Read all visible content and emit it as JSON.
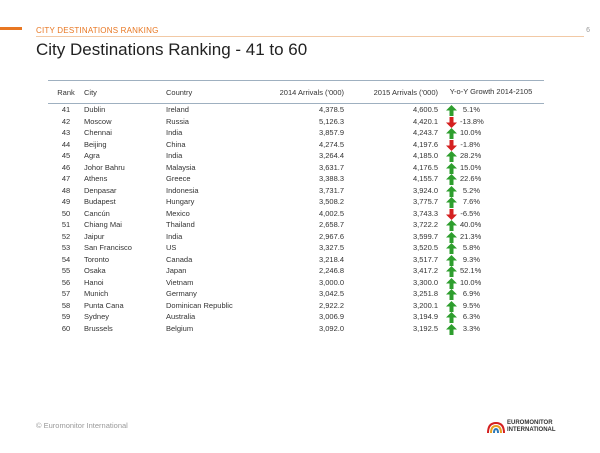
{
  "header": {
    "section_label": "CITY DESTINATIONS RANKING",
    "page_number": "6",
    "title": "City Destinations Ranking - 41 to 60"
  },
  "table": {
    "columns": [
      "Rank",
      "City",
      "Country",
      "2014 Arrivals ('000)",
      "2015 Arrivals ('000)",
      "Y-o-Y Growth 2014-2105"
    ],
    "rows": [
      {
        "rank": "41",
        "city": "Dublin",
        "country": "Ireland",
        "a2014": "4,378.5",
        "a2015": "4,600.5",
        "growth": "5.1%",
        "direction": "up"
      },
      {
        "rank": "42",
        "city": "Moscow",
        "country": "Russia",
        "a2014": "5,126.3",
        "a2015": "4,420.1",
        "growth": "-13.8%",
        "direction": "down"
      },
      {
        "rank": "43",
        "city": "Chennai",
        "country": "India",
        "a2014": "3,857.9",
        "a2015": "4,243.7",
        "growth": "10.0%",
        "direction": "up"
      },
      {
        "rank": "44",
        "city": "Beijing",
        "country": "China",
        "a2014": "4,274.5",
        "a2015": "4,197.6",
        "growth": "-1.8%",
        "direction": "down"
      },
      {
        "rank": "45",
        "city": "Agra",
        "country": "India",
        "a2014": "3,264.4",
        "a2015": "4,185.0",
        "growth": "28.2%",
        "direction": "up"
      },
      {
        "rank": "46",
        "city": "Johor Bahru",
        "country": "Malaysia",
        "a2014": "3,631.7",
        "a2015": "4,176.5",
        "growth": "15.0%",
        "direction": "up"
      },
      {
        "rank": "47",
        "city": "Athens",
        "country": "Greece",
        "a2014": "3,388.3",
        "a2015": "4,155.7",
        "growth": "22.6%",
        "direction": "up"
      },
      {
        "rank": "48",
        "city": "Denpasar",
        "country": "Indonesia",
        "a2014": "3,731.7",
        "a2015": "3,924.0",
        "growth": "5.2%",
        "direction": "up"
      },
      {
        "rank": "49",
        "city": "Budapest",
        "country": "Hungary",
        "a2014": "3,508.2",
        "a2015": "3,775.7",
        "growth": "7.6%",
        "direction": "up"
      },
      {
        "rank": "50",
        "city": "Cancún",
        "country": "Mexico",
        "a2014": "4,002.5",
        "a2015": "3,743.3",
        "growth": "-6.5%",
        "direction": "down"
      },
      {
        "rank": "51",
        "city": "Chiang Mai",
        "country": "Thailand",
        "a2014": "2,658.7",
        "a2015": "3,722.2",
        "growth": "40.0%",
        "direction": "up"
      },
      {
        "rank": "52",
        "city": "Jaipur",
        "country": "India",
        "a2014": "2,967.6",
        "a2015": "3,599.7",
        "growth": "21.3%",
        "direction": "up"
      },
      {
        "rank": "53",
        "city": "San Francisco",
        "country": "US",
        "a2014": "3,327.5",
        "a2015": "3,520.5",
        "growth": "5.8%",
        "direction": "up"
      },
      {
        "rank": "54",
        "city": "Toronto",
        "country": "Canada",
        "a2014": "3,218.4",
        "a2015": "3,517.7",
        "growth": "9.3%",
        "direction": "up"
      },
      {
        "rank": "55",
        "city": "Osaka",
        "country": "Japan",
        "a2014": "2,246.8",
        "a2015": "3,417.2",
        "growth": "52.1%",
        "direction": "up"
      },
      {
        "rank": "56",
        "city": "Hanoi",
        "country": "Vietnam",
        "a2014": "3,000.0",
        "a2015": "3,300.0",
        "growth": "10.0%",
        "direction": "up"
      },
      {
        "rank": "57",
        "city": "Munich",
        "country": "Germany",
        "a2014": "3,042.5",
        "a2015": "3,251.8",
        "growth": "6.9%",
        "direction": "up"
      },
      {
        "rank": "58",
        "city": "Punta Cana",
        "country": "Dominican Republic",
        "a2014": "2,922.2",
        "a2015": "3,200.1",
        "growth": "9.5%",
        "direction": "up"
      },
      {
        "rank": "59",
        "city": "Sydney",
        "country": "Australia",
        "a2014": "3,006.9",
        "a2015": "3,194.9",
        "growth": "6.3%",
        "direction": "up"
      },
      {
        "rank": "60",
        "city": "Brussels",
        "country": "Belgium",
        "a2014": "3,092.0",
        "a2015": "3,192.5",
        "growth": "3.3%",
        "direction": "up"
      }
    ]
  },
  "footer": {
    "copyright": "© Euromonitor International",
    "logo_line1": "EUROMONITOR",
    "logo_line2": "INTERNATIONAL"
  },
  "colors": {
    "accent": "#e87722",
    "arrow_up": "#2e9e2e",
    "arrow_down": "#d42020"
  }
}
